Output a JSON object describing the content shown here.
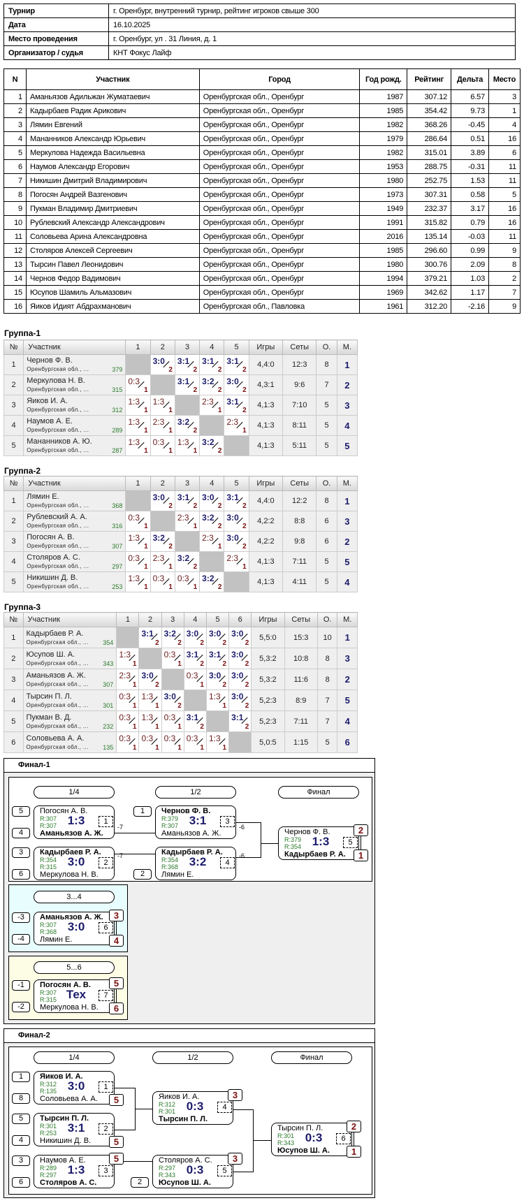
{
  "info": [
    {
      "label": "Турнир",
      "value": "г. Оренбург, внутренний турнир, рейтинг игроков свыше 300"
    },
    {
      "label": "Дата",
      "value": "16.10.2025"
    },
    {
      "label": "Место проведения",
      "value": "г. Оренбург, ул . 31 Линия, д. 1"
    },
    {
      "label": "Организатор / судья",
      "value": "КНТ Фокус Лайф"
    }
  ],
  "players": {
    "headers": [
      "N",
      "Участник",
      "Город",
      "Год рожд.",
      "Рейтинг",
      "Дельта",
      "Место"
    ],
    "rows": [
      [
        "1",
        "Аманьязов Адильжан Жуматаевич",
        "Оренбургская обл., Оренбург",
        "1987",
        "307.12",
        "6.57",
        "3"
      ],
      [
        "2",
        "Кадырбаев Радик Арикович",
        "Оренбургская обл., Оренбург",
        "1985",
        "354.42",
        "9.73",
        "1"
      ],
      [
        "3",
        "Лямин Евгений",
        "Оренбургская обл., Оренбург",
        "1982",
        "368.26",
        "-0.45",
        "4"
      ],
      [
        "4",
        "Мананников Александр Юрьевич",
        "Оренбургская обл., Оренбург",
        "1979",
        "286.64",
        "0.51",
        "16"
      ],
      [
        "5",
        "Меркулова Надежда Васильевна",
        "Оренбургская обл., Оренбург",
        "1982",
        "315.01",
        "3.89",
        "6"
      ],
      [
        "6",
        "Наумов Александр Егорович",
        "Оренбургская обл., Оренбург",
        "1953",
        "288.75",
        "-0.31",
        "11"
      ],
      [
        "7",
        "Никишин Дмитрий Владимирович",
        "Оренбургская обл., Оренбург",
        "1980",
        "252.75",
        "1.53",
        "11"
      ],
      [
        "8",
        "Погосян Андрей Вазгенович",
        "Оренбургская обл., Оренбург",
        "1973",
        "307.31",
        "0.58",
        "5"
      ],
      [
        "9",
        "Пукман Владимир Дмитриевич",
        "Оренбургская обл., Оренбург",
        "1949",
        "232.37",
        "3.17",
        "16"
      ],
      [
        "10",
        "Рублевский Александр Александрович",
        "Оренбургская обл., Оренбург",
        "1991",
        "315.82",
        "0.79",
        "16"
      ],
      [
        "11",
        "Соловьева Арина Александровна",
        "Оренбургская обл., Оренбург",
        "2016",
        "135.14",
        "-0.03",
        "11"
      ],
      [
        "12",
        "Столяров Алексей Сергеевич",
        "Оренбургская обл., Оренбург",
        "1985",
        "296.60",
        "0.99",
        "9"
      ],
      [
        "13",
        "Тырсин Павел Леонидович",
        "Оренбургская обл., Оренбург",
        "1980",
        "300.76",
        "2.09",
        "8"
      ],
      [
        "14",
        "Чернов Федор Вадимович",
        "Оренбургская обл., Оренбург",
        "1994",
        "379.21",
        "1.03",
        "2"
      ],
      [
        "15",
        "Юсупов Шамиль Альмазович",
        "Оренбургская обл., Оренбург",
        "1969",
        "342.62",
        "1.17",
        "7"
      ],
      [
        "16",
        "Яиков Идият Абдрахманович",
        "Оренбургская обл., Павловка",
        "1961",
        "312.20",
        "-2.16",
        "9"
      ]
    ]
  },
  "group_headers": {
    "num": "№",
    "player": "Участник",
    "games": "Игры",
    "sets": "Сеты",
    "points": "О.",
    "place": "М."
  },
  "groups": [
    {
      "title": "Группа-1",
      "rows": [
        {
          "n": "1",
          "name": "Чернов Ф. В.",
          "region": "Оренбургская обл., ...",
          "rating": "379",
          "res": [
            null,
            [
              "3:0",
              "2"
            ],
            [
              "3:1",
              "2"
            ],
            [
              "3:1",
              "2"
            ],
            [
              "3:1",
              "2"
            ]
          ],
          "games": "4,4:0",
          "sets": "12:3",
          "points": "8",
          "place": "1"
        },
        {
          "n": "2",
          "name": "Меркулова Н. В.",
          "region": "Оренбургская обл., ...",
          "rating": "315",
          "res": [
            [
              "0:3",
              "1"
            ],
            null,
            [
              "3:1",
              "2"
            ],
            [
              "3:2",
              "2"
            ],
            [
              "3:0",
              "2"
            ]
          ],
          "games": "4,3:1",
          "sets": "9:6",
          "points": "7",
          "place": "2"
        },
        {
          "n": "3",
          "name": "Яиков И. А.",
          "region": "Оренбургская обл., ...",
          "rating": "312",
          "res": [
            [
              "1:3",
              "1"
            ],
            [
              "1:3",
              "1"
            ],
            null,
            [
              "2:3",
              "1"
            ],
            [
              "3:1",
              "2"
            ]
          ],
          "games": "4,1:3",
          "sets": "7:10",
          "points": "5",
          "place": "3"
        },
        {
          "n": "4",
          "name": "Наумов А. Е.",
          "region": "Оренбургская обл., ...",
          "rating": "289",
          "res": [
            [
              "1:3",
              "1"
            ],
            [
              "2:3",
              "1"
            ],
            [
              "3:2",
              "2"
            ],
            null,
            [
              "2:3",
              "1"
            ]
          ],
          "games": "4,1:3",
          "sets": "8:11",
          "points": "5",
          "place": "4"
        },
        {
          "n": "5",
          "name": "Мананников А. Ю.",
          "region": "Оренбургская обл., ...",
          "rating": "287",
          "res": [
            [
              "1:3",
              "1"
            ],
            [
              "0:3",
              "1"
            ],
            [
              "1:3",
              "1"
            ],
            [
              "3:2",
              "2"
            ],
            null
          ],
          "games": "4,1:3",
          "sets": "5:11",
          "points": "5",
          "place": "5"
        }
      ]
    },
    {
      "title": "Группа-2",
      "rows": [
        {
          "n": "1",
          "name": "Лямин Е.",
          "region": "Оренбургская обл., ...",
          "rating": "368",
          "res": [
            null,
            [
              "3:0",
              "2"
            ],
            [
              "3:1",
              "2"
            ],
            [
              "3:0",
              "2"
            ],
            [
              "3:1",
              "2"
            ]
          ],
          "games": "4,4:0",
          "sets": "12:2",
          "points": "8",
          "place": "1"
        },
        {
          "n": "2",
          "name": "Рублевский А. А.",
          "region": "Оренбургская обл., ...",
          "rating": "316",
          "res": [
            [
              "0:3",
              "1"
            ],
            null,
            [
              "2:3",
              "1"
            ],
            [
              "3:2",
              "2"
            ],
            [
              "3:0",
              "2"
            ]
          ],
          "games": "4,2:2",
          "sets": "8:8",
          "points": "6",
          "place": "3"
        },
        {
          "n": "3",
          "name": "Погосян А. В.",
          "region": "Оренбургская обл., ...",
          "rating": "307",
          "res": [
            [
              "1:3",
              "1"
            ],
            [
              "3:2",
              "2"
            ],
            null,
            [
              "2:3",
              "1"
            ],
            [
              "3:0",
              "2"
            ]
          ],
          "games": "4,2:2",
          "sets": "9:8",
          "points": "6",
          "place": "2"
        },
        {
          "n": "4",
          "name": "Столяров А. С.",
          "region": "Оренбургская обл., ...",
          "rating": "297",
          "res": [
            [
              "0:3",
              "1"
            ],
            [
              "2:3",
              "1"
            ],
            [
              "3:2",
              "2"
            ],
            null,
            [
              "2:3",
              "1"
            ]
          ],
          "games": "4,1:3",
          "sets": "7:11",
          "points": "5",
          "place": "5"
        },
        {
          "n": "5",
          "name": "Никишин Д. В.",
          "region": "Оренбургская обл., ...",
          "rating": "253",
          "res": [
            [
              "1:3",
              "1"
            ],
            [
              "0:3",
              "1"
            ],
            [
              "0:3",
              "1"
            ],
            [
              "3:2",
              "2"
            ],
            null
          ],
          "games": "4,1:3",
          "sets": "4:11",
          "points": "5",
          "place": "4"
        }
      ]
    },
    {
      "title": "Группа-3",
      "rows": [
        {
          "n": "1",
          "name": "Кадырбаев Р. А.",
          "region": "Оренбургская обл., ...",
          "rating": "354",
          "res": [
            null,
            [
              "3:1",
              "2"
            ],
            [
              "3:2",
              "2"
            ],
            [
              "3:0",
              "2"
            ],
            [
              "3:0",
              "2"
            ],
            [
              "3:0",
              "2"
            ]
          ],
          "games": "5,5:0",
          "sets": "15:3",
          "points": "10",
          "place": "1"
        },
        {
          "n": "2",
          "name": "Юсупов Ш. А.",
          "region": "Оренбургская обл., ...",
          "rating": "343",
          "res": [
            [
              "1:3",
              "1"
            ],
            null,
            [
              "0:3",
              "1"
            ],
            [
              "3:1",
              "2"
            ],
            [
              "3:1",
              "2"
            ],
            [
              "3:0",
              "2"
            ]
          ],
          "games": "5,3:2",
          "sets": "10:8",
          "points": "8",
          "place": "3"
        },
        {
          "n": "3",
          "name": "Аманьязов А. Ж.",
          "region": "Оренбургская обл., ...",
          "rating": "307",
          "res": [
            [
              "2:3",
              "1"
            ],
            [
              "3:0",
              "2"
            ],
            null,
            [
              "0:3",
              "1"
            ],
            [
              "3:0",
              "2"
            ],
            [
              "3:0",
              "2"
            ]
          ],
          "games": "5,3:2",
          "sets": "11:6",
          "points": "8",
          "place": "2"
        },
        {
          "n": "4",
          "name": "Тырсин П. Л.",
          "region": "Оренбургская обл., ...",
          "rating": "301",
          "res": [
            [
              "0:3",
              "1"
            ],
            [
              "1:3",
              "1"
            ],
            [
              "3:0",
              "2"
            ],
            null,
            [
              "1:3",
              "1"
            ],
            [
              "3:0",
              "2"
            ]
          ],
          "games": "5,2:3",
          "sets": "8:9",
          "points": "7",
          "place": "5"
        },
        {
          "n": "5",
          "name": "Пукман В. Д.",
          "region": "Оренбургская обл., ...",
          "rating": "232",
          "res": [
            [
              "0:3",
              "1"
            ],
            [
              "1:3",
              "1"
            ],
            [
              "0:3",
              "1"
            ],
            [
              "3:1",
              "2"
            ],
            null,
            [
              "3:1",
              "2"
            ]
          ],
          "games": "5,2:3",
          "sets": "7:11",
          "points": "7",
          "place": "4"
        },
        {
          "n": "6",
          "name": "Соловьева А. А.",
          "region": "Оренбургская обл., ...",
          "rating": "135",
          "res": [
            [
              "0:3",
              "1"
            ],
            [
              "0:3",
              "1"
            ],
            [
              "0:3",
              "1"
            ],
            [
              "0:3",
              "1"
            ],
            [
              "1:3",
              "1"
            ],
            null
          ],
          "games": "5,0:5",
          "sets": "1:15",
          "points": "5",
          "place": "6"
        }
      ]
    }
  ],
  "finals": [
    {
      "title": "Финал-1",
      "rounds": [
        "1/4",
        "1/2",
        "Финал"
      ],
      "extra_rounds": [
        "3...4",
        "5...6"
      ],
      "matches": [
        {
          "seed1": "5",
          "seed2": "4",
          "p1": "Погосян А. В.",
          "r1": "R:307",
          "p2": "Аманьязов А. Ж.",
          "r2": "R:307",
          "score": "1:3",
          "num": "1",
          "winner": 2,
          "loser_to": "-7"
        },
        {
          "seed1": "3",
          "seed2": "6",
          "p1": "Кадырбаев Р. А.",
          "r1": "R:354",
          "p2": "Меркулова Н. В.",
          "r2": "R:315",
          "score": "3:0",
          "num": "2",
          "winner": 1,
          "loser_to": "-7"
        },
        {
          "seed1": "1",
          "p1": "Чернов Ф. В.",
          "r1": "R:379",
          "p2": "Аманьязов А. Ж.",
          "r2": "R:307",
          "score": "3:1",
          "num": "3",
          "winner": 1,
          "loser_to": "-6"
        },
        {
          "seed2": "2",
          "p1": "Кадырбаев Р. А.",
          "r1": "R:354",
          "p2": "Лямин Е.",
          "r2": "R:368",
          "score": "3:2",
          "num": "4",
          "winner": 1,
          "loser_to": "-6"
        },
        {
          "p1": "Чернов Ф. В.",
          "r1": "R:379",
          "p2": "Кадырбаев Р. А.",
          "r2": "R:354",
          "score": "1:3",
          "num": "5",
          "winner": 2,
          "badge1": "2",
          "badge2": "1"
        },
        {
          "seed1": "-3",
          "seed2": "-4",
          "p1": "Аманьязов А. Ж.",
          "r1": "R:307",
          "p2": "Лямин Е.",
          "r2": "R:368",
          "score": "3:0",
          "num": "6",
          "winner": 1,
          "badge1": "3",
          "badge2": "4"
        },
        {
          "seed1": "-1",
          "seed2": "-2",
          "p1": "Погосян А. В.",
          "r1": "R:307",
          "p2": "Меркулова Н. В.",
          "r2": "R:315",
          "score": "Тех",
          "num": "7",
          "winner": 1,
          "badge1": "5",
          "badge2": "6"
        }
      ]
    },
    {
      "title": "Финал-2",
      "rounds": [
        "1/4",
        "1/2",
        "Финал"
      ],
      "matches": [
        {
          "seed1": "1",
          "seed2": "8",
          "p1": "Яиков И. А.",
          "r1": "R:312",
          "p2": "Соловьева А. А.",
          "r2": "R:135",
          "score": "3:0",
          "num": "1",
          "winner": 1,
          "badge2": "5"
        },
        {
          "seed1": "5",
          "seed2": "4",
          "p1": "Тырсин П. Л.",
          "r1": "R:301",
          "p2": "Никишин Д. В.",
          "r2": "R:253",
          "score": "3:1",
          "num": "2",
          "winner": 1,
          "badge2": "5"
        },
        {
          "seed1": "3",
          "seed2": "6",
          "p1": "Наумов А. Е.",
          "r1": "R:289",
          "p2": "Столяров А. С.",
          "r2": "R:297",
          "score": "1:3",
          "num": "3",
          "winner": 2,
          "badge1": "5"
        },
        {
          "p1": "Яиков И. А.",
          "r1": "R:312",
          "p2": "Тырсин П. Л.",
          "r2": "R:301",
          "score": "0:3",
          "num": "4",
          "winner": 2,
          "badge1": "3"
        },
        {
          "seed2": "2",
          "p1": "Столяров А. С.",
          "r1": "R:297",
          "p2": "Юсупов Ш. А.",
          "r2": "R:343",
          "score": "0:3",
          "num": "5",
          "winner": 2,
          "badge1": "3"
        },
        {
          "p1": "Тырсин П. Л.",
          "r1": "R:301",
          "p2": "Юсупов Ш. А.",
          "r2": "R:343",
          "score": "0:3",
          "num": "6",
          "winner": 2,
          "badge1": "2",
          "badge2": "1"
        }
      ]
    }
  ]
}
